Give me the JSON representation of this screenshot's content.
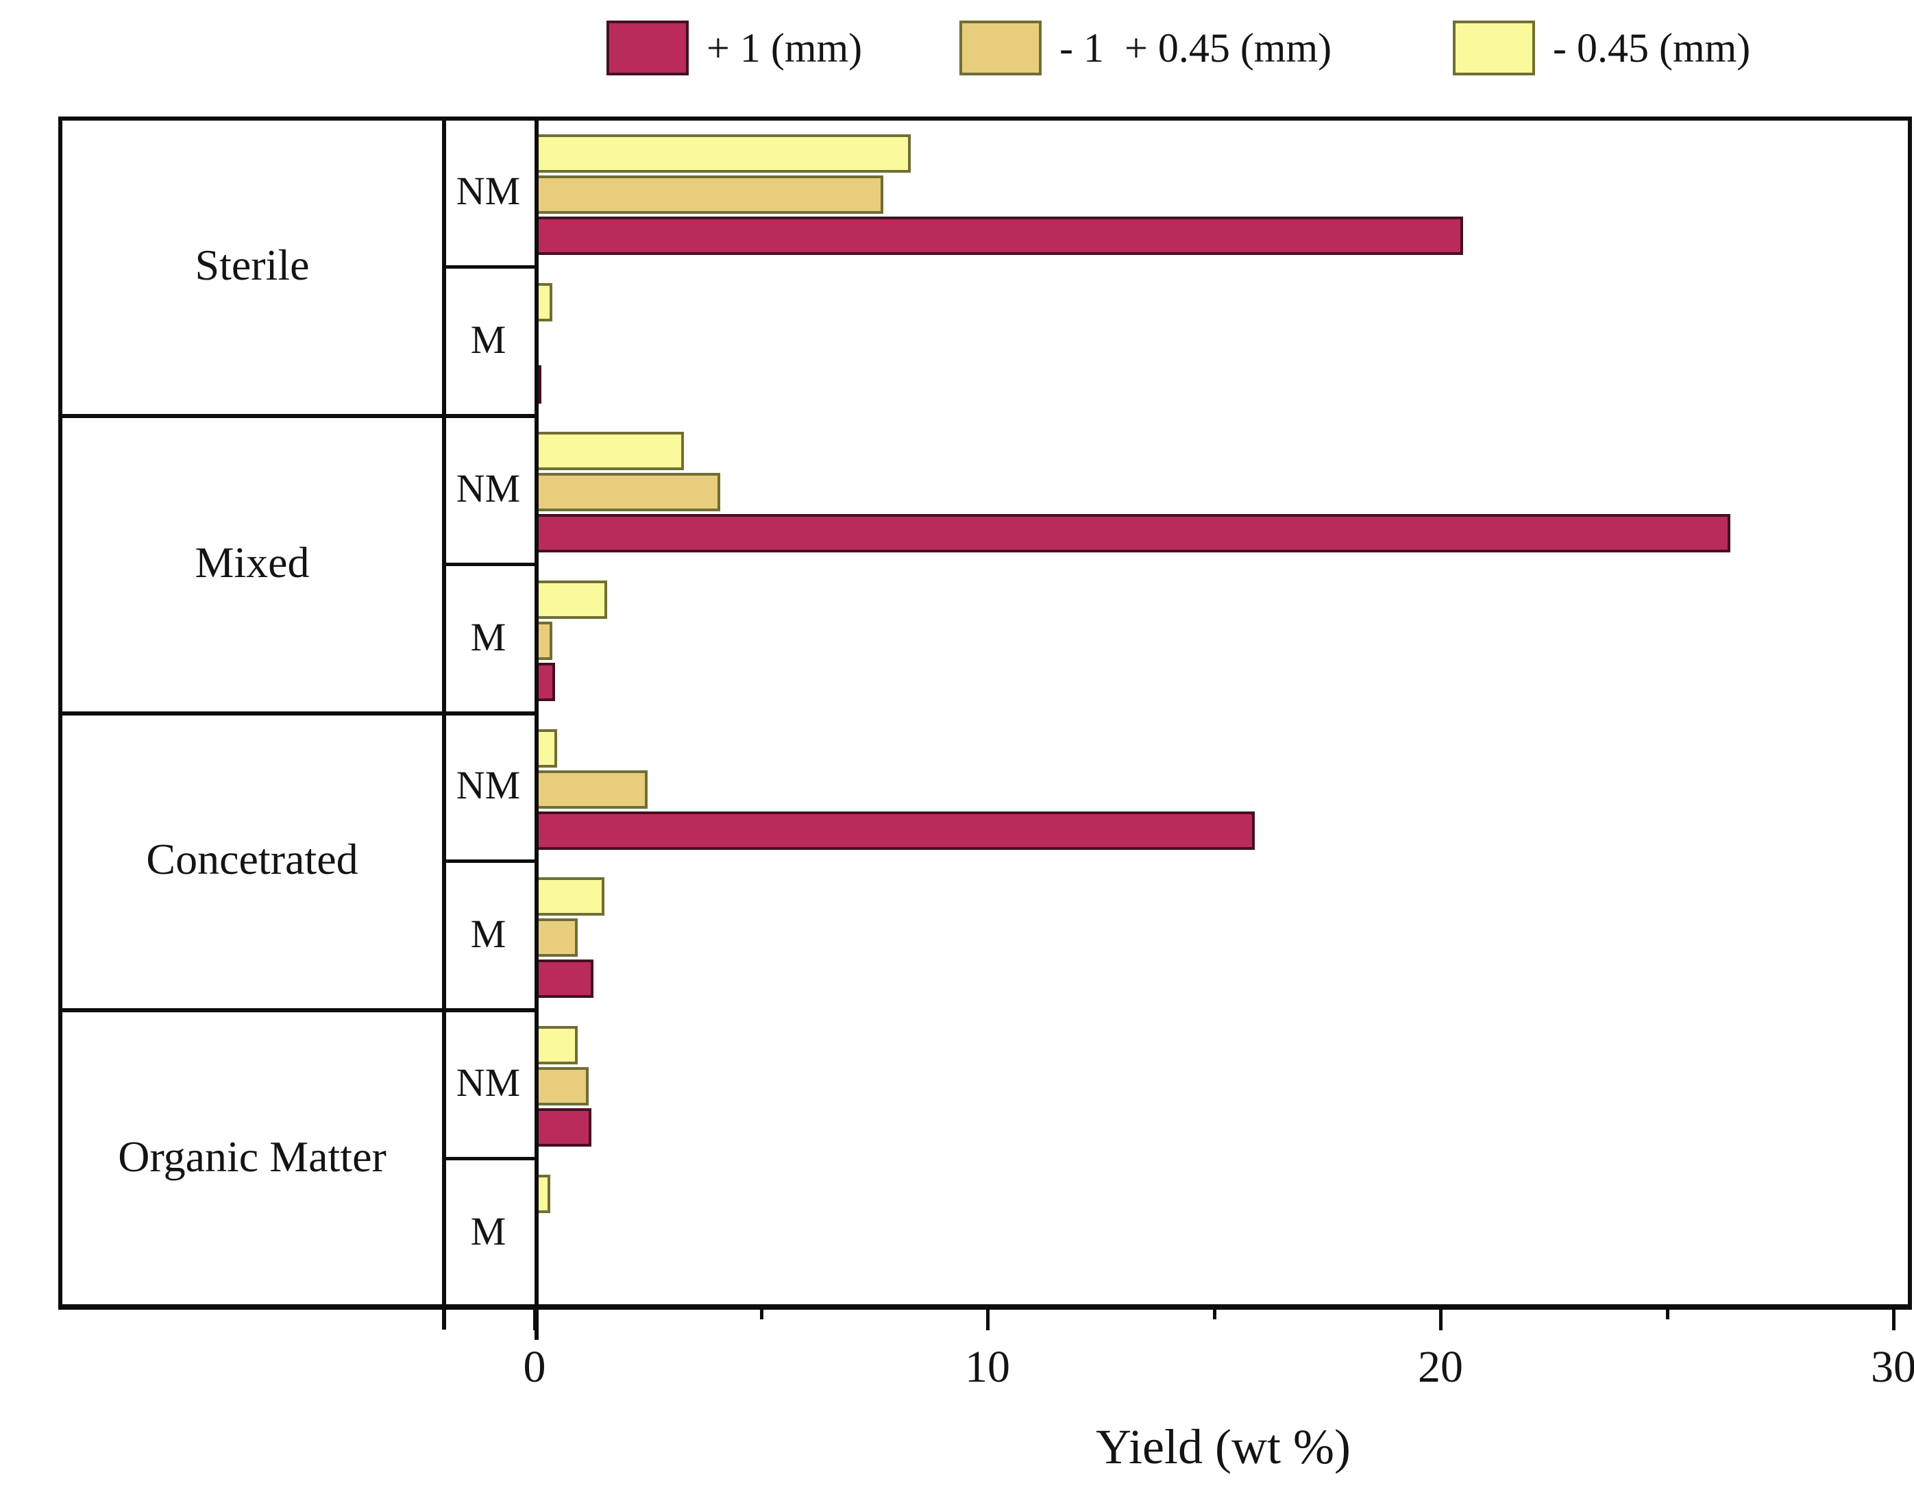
{
  "legend": {
    "items": [
      {
        "label": "+ 1 (mm)",
        "series": "plus1",
        "x": 885
      },
      {
        "label": "- 1  + 0.45 (mm)",
        "series": "mid",
        "x": 1400
      },
      {
        "label": "- 0.45 (mm)",
        "series": "minus045",
        "x": 2120
      }
    ]
  },
  "colors": {
    "plus1": "#b92b5b",
    "plus1_border": "#451024",
    "mid": "#e8cd7d",
    "mid_border": "#6f6f35",
    "minus045": "#fafa9d",
    "minus045_border": "#6f6f35",
    "line": "#0d0d0d"
  },
  "chart_data": {
    "type": "bar",
    "orientation": "horizontal",
    "title": "",
    "xlabel": "Yield (wt %)",
    "ylabel": "",
    "xlim": [
      0,
      30.4
    ],
    "xticks": [
      0,
      10,
      20,
      30
    ],
    "xminorticks": [
      5,
      15,
      25
    ],
    "grid": false,
    "legend_position": "top",
    "series_order_top_to_bottom": [
      "- 0.45 (mm)",
      "- 1  + 0.45 (mm)",
      "+ 1 (mm)"
    ],
    "categories": [
      "Sterile",
      "Mixed",
      "Concetrated",
      "Organic Matter"
    ],
    "subrows": [
      "NM",
      "M"
    ],
    "values": {
      "Sterile": {
        "NM": {
          "+ 1 (mm)": 20.5,
          "- 1  + 0.45 (mm)": 7.7,
          "- 0.45 (mm)": 8.3
        },
        "M": {
          "+ 1 (mm)": 0.15,
          "- 1  + 0.45 (mm)": 0,
          "- 0.45 (mm)": 0.4
        }
      },
      "Mixed": {
        "NM": {
          "+ 1 (mm)": 26.4,
          "- 1  + 0.45 (mm)": 4.1,
          "- 0.45 (mm)": 3.3
        },
        "M": {
          "+ 1 (mm)": 0.45,
          "- 1  + 0.45 (mm)": 0.4,
          "- 0.45 (mm)": 1.6
        }
      },
      "Concetrated": {
        "NM": {
          "+ 1 (mm)": 15.9,
          "- 1  + 0.45 (mm)": 2.5,
          "- 0.45 (mm)": 0.5
        },
        "M": {
          "+ 1 (mm)": 1.3,
          "- 1  + 0.45 (mm)": 0.95,
          "- 0.45 (mm)": 1.55
        }
      },
      "Organic Matter": {
        "NM": {
          "+ 1 (mm)": 1.25,
          "- 1  + 0.45 (mm)": 1.2,
          "- 0.45 (mm)": 0.95
        },
        "M": {
          "+ 1 (mm)": 0,
          "- 1  + 0.45 (mm)": 0,
          "- 0.45 (mm)": 0.35
        }
      }
    }
  }
}
